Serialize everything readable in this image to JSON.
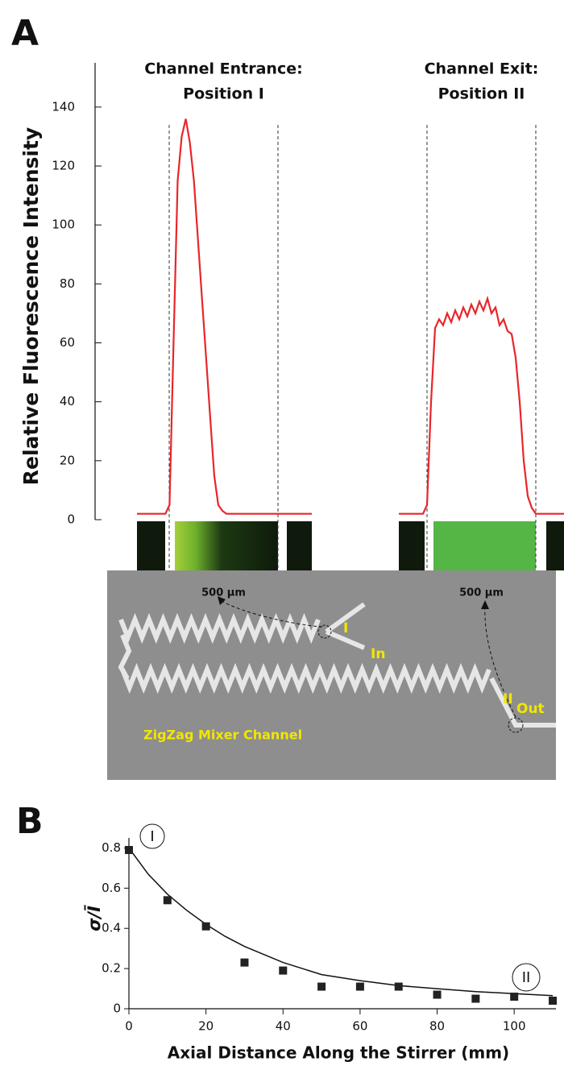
{
  "chart_data": [
    {
      "type": "line",
      "label": "A",
      "ylabel": "Relative Fluorescence Intensity",
      "ylim": [
        0,
        155
      ],
      "yticks": [
        0,
        20,
        40,
        60,
        80,
        100,
        120,
        140
      ],
      "color": "#e8262a",
      "panels": [
        {
          "title": [
            "Channel Entrance:",
            "Position I"
          ],
          "scale_bar": "500 µm",
          "values": [
            2,
            2,
            2,
            2,
            2,
            2,
            2,
            2,
            5,
            60,
            115,
            130,
            136,
            128,
            115,
            95,
            75,
            55,
            35,
            15,
            5,
            3,
            2,
            2,
            2,
            2,
            2,
            2,
            2,
            2,
            2,
            2,
            2,
            2,
            2,
            2,
            2,
            2,
            2,
            2,
            2,
            2,
            2,
            2
          ]
        },
        {
          "title": [
            "Channel Exit:",
            "Position II"
          ],
          "scale_bar": "500 µm",
          "values": [
            2,
            2,
            2,
            2,
            2,
            2,
            2,
            5,
            40,
            65,
            68,
            66,
            70,
            67,
            71,
            68,
            72,
            69,
            73,
            70,
            74,
            71,
            75,
            70,
            72,
            66,
            68,
            64,
            63,
            55,
            40,
            20,
            8,
            4,
            2,
            2,
            2,
            2,
            2,
            2,
            2,
            2
          ]
        }
      ]
    },
    {
      "type": "scatter",
      "label": "B",
      "xlabel": "Axial Distance Along the Stirrer (mm)",
      "ylabel": "σ/Ī",
      "xlim": [
        0,
        110
      ],
      "ylim": [
        0,
        0.85
      ],
      "xticks": [
        0,
        20,
        40,
        60,
        80,
        100
      ],
      "yticks": [
        0,
        0.2,
        0.4,
        0.6,
        0.8
      ],
      "color": "#222222",
      "x": [
        0,
        10,
        20,
        30,
        40,
        50,
        60,
        70,
        80,
        90,
        100,
        110
      ],
      "values": [
        0.79,
        0.54,
        0.41,
        0.23,
        0.19,
        0.11,
        0.11,
        0.11,
        0.07,
        0.05,
        0.06,
        0.04
      ],
      "fit": {
        "x": [
          0,
          5,
          10,
          15,
          20,
          25,
          30,
          40,
          50,
          60,
          70,
          80,
          90,
          100,
          110
        ],
        "values": [
          0.8,
          0.67,
          0.57,
          0.49,
          0.42,
          0.36,
          0.31,
          0.23,
          0.17,
          0.14,
          0.115,
          0.1,
          0.085,
          0.075,
          0.065
        ]
      },
      "annotations": [
        "I",
        "II"
      ]
    }
  ],
  "diagram": {
    "labels": [
      "I",
      "In",
      "II",
      "Out"
    ],
    "caption": "ZigZag Mixer Channel"
  }
}
